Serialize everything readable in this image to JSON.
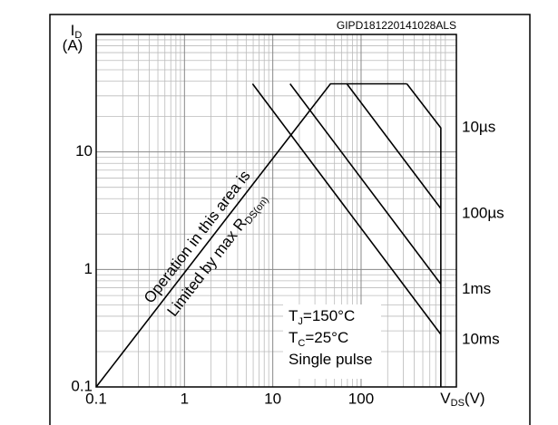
{
  "chart_data": {
    "type": "line",
    "code": "GIPD181220141028ALS",
    "ylabel": {
      "main": "I",
      "sub": "D",
      "unit": "(A)"
    },
    "xlabel": {
      "main": "V",
      "sub": "DS",
      "unit": "(V)",
      "at": 1000
    },
    "log_x": true,
    "log_y": true,
    "grid": true,
    "minor_grid": true,
    "color": "#000000",
    "xlim": [
      0.1,
      1200
    ],
    "ylim": [
      0.1,
      100
    ],
    "xticks": [
      0.1,
      1,
      10,
      100
    ],
    "yticks": [
      0.1,
      1,
      10
    ],
    "series": [
      {
        "x": [
          0.1,
          45,
          330
        ],
        "y": [
          0.1,
          38,
          38
        ]
      },
      {
        "name": "10µs",
        "x": [
          330,
          800,
          800
        ],
        "y": [
          38,
          16,
          0.1
        ]
      },
      {
        "name": "100µs",
        "x": [
          69,
          800
        ],
        "y": [
          38,
          3.3
        ]
      },
      {
        "name": "1ms",
        "x": [
          15.7,
          800
        ],
        "y": [
          38,
          0.75
        ]
      },
      {
        "name": "10ms",
        "x": [
          5.9,
          800
        ],
        "y": [
          38,
          0.28
        ]
      }
    ],
    "region_note": {
      "line1": "Operation in this area is",
      "line2": "Limited by max R",
      "line2_sub": "DS(on)"
    },
    "conditions": [
      {
        "main": "T",
        "sub": "J",
        "rest": "=150°C"
      },
      {
        "main": "T",
        "sub": "C",
        "rest": "=25°C"
      },
      {
        "main": "Single pulse"
      }
    ]
  }
}
